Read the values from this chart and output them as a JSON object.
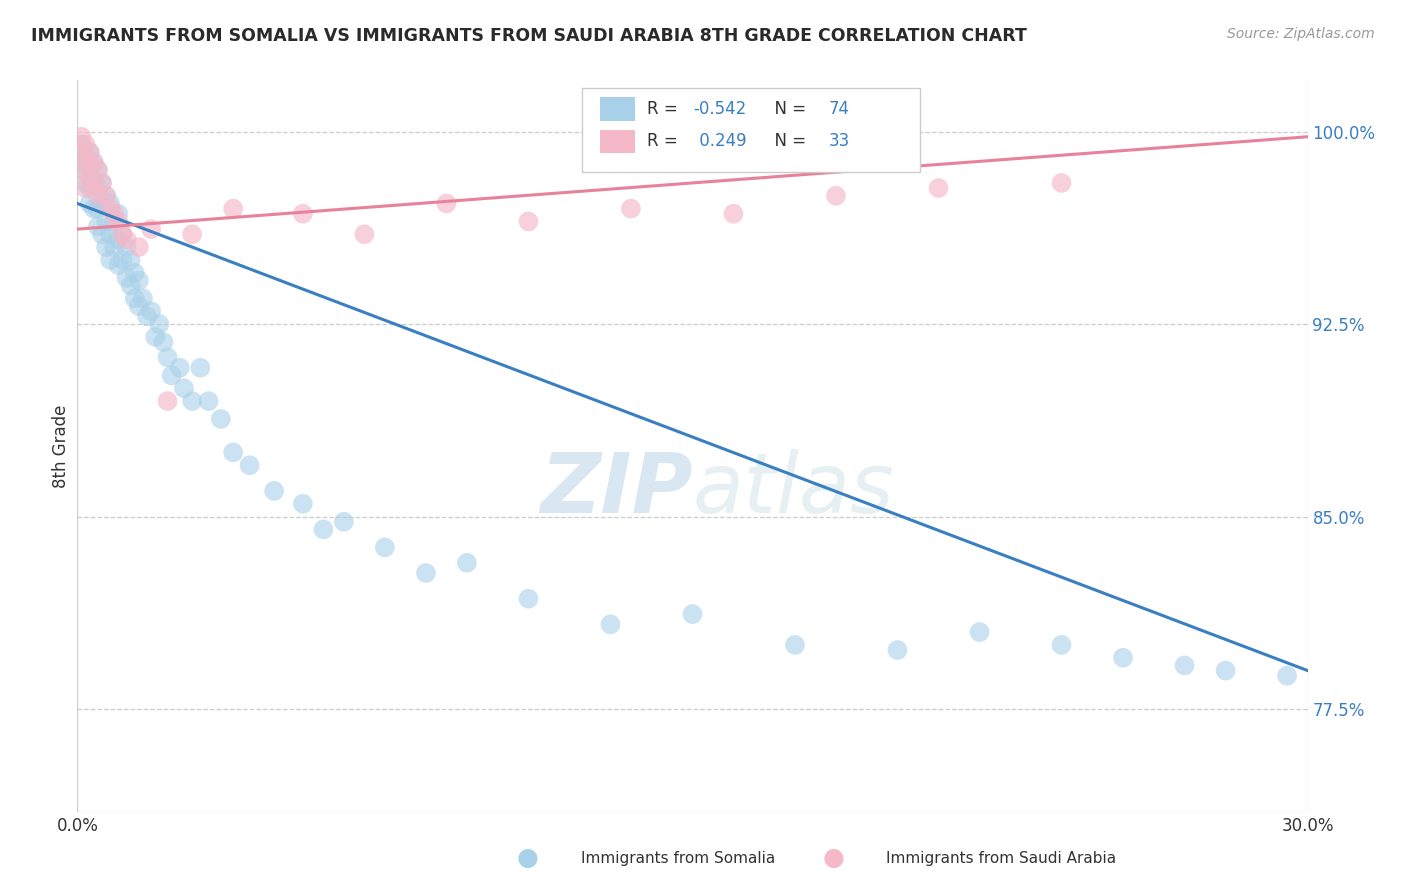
{
  "title": "IMMIGRANTS FROM SOMALIA VS IMMIGRANTS FROM SAUDI ARABIA 8TH GRADE CORRELATION CHART",
  "source": "Source: ZipAtlas.com",
  "ylabel_label": "8th Grade",
  "ytick_labels": [
    "77.5%",
    "85.0%",
    "92.5%",
    "100.0%"
  ],
  "ytick_values": [
    0.775,
    0.85,
    0.925,
    1.0
  ],
  "xlim": [
    0.0,
    0.3
  ],
  "ylim": [
    0.735,
    1.02
  ],
  "legend_somalia": "Immigrants from Somalia",
  "legend_saudi": "Immigrants from Saudi Arabia",
  "R_somalia": -0.542,
  "N_somalia": 74,
  "R_saudi": 0.249,
  "N_saudi": 33,
  "somalia_color": "#a8d0e8",
  "saudi_color": "#f4b8c8",
  "somalia_line_color": "#3a7fc1",
  "saudi_line_color": "#e8829a",
  "watermark_zip": "ZIP",
  "watermark_atlas": "atlas",
  "somalia_x": [
    0.001,
    0.001,
    0.002,
    0.002,
    0.002,
    0.003,
    0.003,
    0.003,
    0.003,
    0.004,
    0.004,
    0.004,
    0.005,
    0.005,
    0.005,
    0.005,
    0.006,
    0.006,
    0.006,
    0.007,
    0.007,
    0.007,
    0.008,
    0.008,
    0.008,
    0.009,
    0.009,
    0.01,
    0.01,
    0.01,
    0.011,
    0.011,
    0.012,
    0.012,
    0.013,
    0.013,
    0.014,
    0.014,
    0.015,
    0.015,
    0.016,
    0.017,
    0.018,
    0.019,
    0.02,
    0.021,
    0.022,
    0.023,
    0.025,
    0.026,
    0.028,
    0.03,
    0.032,
    0.035,
    0.038,
    0.042,
    0.048,
    0.055,
    0.06,
    0.065,
    0.075,
    0.085,
    0.095,
    0.11,
    0.13,
    0.15,
    0.175,
    0.2,
    0.22,
    0.24,
    0.255,
    0.27,
    0.28,
    0.295
  ],
  "somalia_y": [
    0.988,
    0.995,
    0.99,
    0.985,
    0.98,
    0.992,
    0.986,
    0.978,
    0.972,
    0.988,
    0.98,
    0.97,
    0.985,
    0.978,
    0.97,
    0.963,
    0.98,
    0.972,
    0.96,
    0.975,
    0.965,
    0.955,
    0.972,
    0.96,
    0.95,
    0.965,
    0.955,
    0.968,
    0.958,
    0.948,
    0.96,
    0.95,
    0.955,
    0.943,
    0.95,
    0.94,
    0.945,
    0.935,
    0.942,
    0.932,
    0.935,
    0.928,
    0.93,
    0.92,
    0.925,
    0.918,
    0.912,
    0.905,
    0.908,
    0.9,
    0.895,
    0.908,
    0.895,
    0.888,
    0.875,
    0.87,
    0.86,
    0.855,
    0.845,
    0.848,
    0.838,
    0.828,
    0.832,
    0.818,
    0.808,
    0.812,
    0.8,
    0.798,
    0.805,
    0.8,
    0.795,
    0.792,
    0.79,
    0.788
  ],
  "saudi_x": [
    0.001,
    0.001,
    0.001,
    0.002,
    0.002,
    0.002,
    0.003,
    0.003,
    0.004,
    0.004,
    0.005,
    0.005,
    0.006,
    0.007,
    0.008,
    0.009,
    0.01,
    0.011,
    0.012,
    0.015,
    0.018,
    0.022,
    0.028,
    0.038,
    0.055,
    0.07,
    0.09,
    0.11,
    0.135,
    0.16,
    0.185,
    0.21,
    0.24
  ],
  "saudi_y": [
    0.998,
    0.992,
    0.985,
    0.995,
    0.988,
    0.978,
    0.992,
    0.982,
    0.988,
    0.978,
    0.985,
    0.975,
    0.98,
    0.975,
    0.97,
    0.968,
    0.965,
    0.96,
    0.958,
    0.955,
    0.962,
    0.895,
    0.96,
    0.97,
    0.968,
    0.96,
    0.972,
    0.965,
    0.97,
    0.968,
    0.975,
    0.978,
    0.98
  ],
  "somalia_trend_x": [
    0.0,
    0.3
  ],
  "somalia_trend_y": [
    0.972,
    0.79
  ],
  "saudi_trend_x": [
    0.0,
    0.3
  ],
  "saudi_trend_y": [
    0.962,
    0.998
  ]
}
